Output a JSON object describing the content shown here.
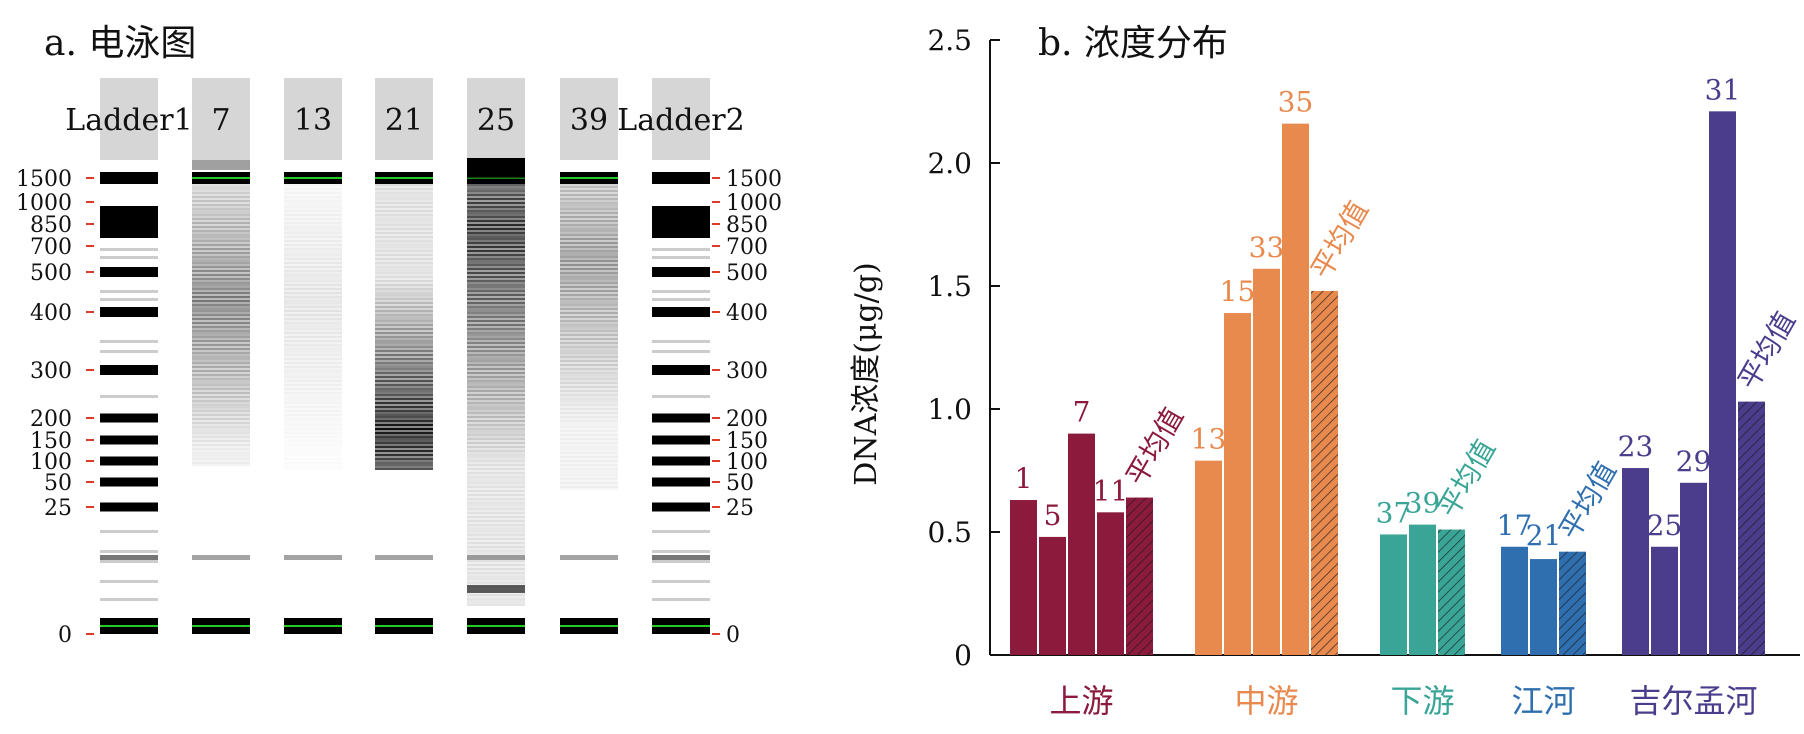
{
  "panel_a": {
    "title": "a. 电泳图",
    "lanes": [
      "Ladder1",
      "7",
      "13",
      "21",
      "25",
      "39",
      "Ladder2"
    ],
    "ladder_sizes": [
      "1500",
      "1000",
      "850",
      "700",
      "500",
      "400",
      "300",
      "200",
      "150",
      "100",
      "50",
      "25",
      "0"
    ],
    "ladder_bp": [
      1500,
      1000,
      850,
      700,
      500,
      400,
      300,
      200,
      150,
      100,
      50,
      25,
      0
    ],
    "marker_color": "#e03b2a",
    "marker_band_color": "#22cc22"
  },
  "chart_data": {
    "type": "bar",
    "title": "b. 浓度分布",
    "ylabel": "DNA浓度(μg/g)",
    "xlabel": "",
    "ylim": [
      0,
      2.5
    ],
    "yticks": [
      0,
      0.5,
      1.0,
      1.5,
      2.0,
      2.5
    ],
    "ytick_labels": [
      "0",
      "0.5",
      "1.0",
      "1.5",
      "2.0",
      "2.5"
    ],
    "grid": false,
    "groups": [
      {
        "name": "上游",
        "color": "#8b1a3d",
        "samples": [
          "1",
          "5",
          "7",
          "11"
        ],
        "values": [
          0.63,
          0.48,
          0.9,
          0.58
        ],
        "average_label": "平均值",
        "average": 0.64
      },
      {
        "name": "中游",
        "color": "#e8894e",
        "samples": [
          "13",
          "15",
          "33",
          "35"
        ],
        "values": [
          0.79,
          1.39,
          1.57,
          2.16
        ],
        "average_label": "平均值",
        "average": 1.48
      },
      {
        "name": "下游",
        "color": "#3aa597",
        "samples": [
          "37",
          "39"
        ],
        "values": [
          0.49,
          0.53
        ],
        "average_label": "平均值",
        "average": 0.51
      },
      {
        "name": "江河",
        "color": "#2f6fb0",
        "samples": [
          "17",
          "21"
        ],
        "values": [
          0.44,
          0.39
        ],
        "average_label": "平均值",
        "average": 0.42
      },
      {
        "name": "吉尔孟河",
        "color": "#4b3d8c",
        "samples": [
          "23",
          "25",
          "29",
          "31"
        ],
        "values": [
          0.76,
          0.44,
          0.7,
          2.21
        ],
        "average_label": "平均值",
        "average": 1.03
      }
    ]
  }
}
